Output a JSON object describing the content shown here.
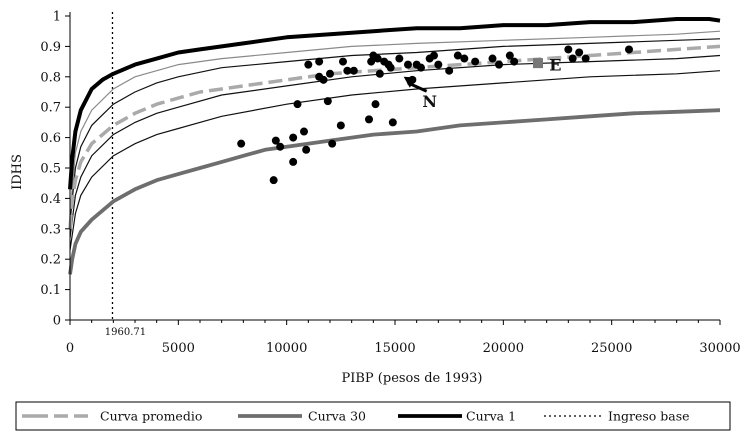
{
  "chart_data": {
    "type": "line",
    "title": "",
    "xlabel": "PIBP (pesos de 1993)",
    "ylabel": "IDHS",
    "xlim": [
      0,
      30000
    ],
    "ylim": [
      0,
      1
    ],
    "x_ticks": [
      "0",
      "5000",
      "10000",
      "15000",
      "20000",
      "25000",
      "30000"
    ],
    "y_ticks": [
      "0",
      "0.1",
      "0.2",
      "0.3",
      "0.4",
      "0.5",
      "0.6",
      "0.7",
      "0.8",
      "0.9",
      "1"
    ],
    "grid": false,
    "legend_position": "bottom",
    "reference_line": {
      "x": 1960.71,
      "label": "1960.71",
      "style": "dotted"
    },
    "series": [
      {
        "name": "Curva 1",
        "style": "solid-thick",
        "color": "#000000",
        "x": [
          0,
          100,
          250,
          500,
          1000,
          1500,
          2000,
          3000,
          4000,
          5000,
          6000,
          7000,
          8000,
          9000,
          10000,
          12000,
          14000,
          16000,
          18000,
          20000,
          22000,
          24000,
          26000,
          28000,
          29500,
          30000
        ],
        "y": [
          0.43,
          0.53,
          0.62,
          0.69,
          0.76,
          0.79,
          0.81,
          0.84,
          0.86,
          0.88,
          0.89,
          0.9,
          0.91,
          0.92,
          0.93,
          0.94,
          0.95,
          0.96,
          0.96,
          0.97,
          0.97,
          0.98,
          0.98,
          0.99,
          0.99,
          0.985
        ]
      },
      {
        "name": "Curva promedio",
        "style": "dashed-thick",
        "color": "#aaaaaa",
        "x": [
          0,
          100,
          250,
          500,
          1000,
          1500,
          2000,
          3000,
          4000,
          5000,
          6000,
          7000,
          8000,
          9000,
          10000,
          12000,
          14000,
          16000,
          18000,
          20000,
          22000,
          24000,
          26000,
          28000,
          30000
        ],
        "y": [
          0.3,
          0.39,
          0.46,
          0.52,
          0.58,
          0.61,
          0.64,
          0.68,
          0.71,
          0.73,
          0.75,
          0.76,
          0.77,
          0.78,
          0.79,
          0.81,
          0.82,
          0.83,
          0.84,
          0.85,
          0.86,
          0.87,
          0.88,
          0.89,
          0.9
        ]
      },
      {
        "name": "Curva 30",
        "style": "solid-thick",
        "color": "#6e6e6e",
        "x": [
          0,
          100,
          250,
          500,
          1000,
          1500,
          2000,
          3000,
          4000,
          5000,
          6000,
          7000,
          8000,
          9000,
          10000,
          12000,
          14000,
          16000,
          18000,
          20000,
          22000,
          24000,
          26000,
          28000,
          30000
        ],
        "y": [
          0.15,
          0.2,
          0.25,
          0.29,
          0.33,
          0.36,
          0.39,
          0.43,
          0.46,
          0.48,
          0.5,
          0.52,
          0.54,
          0.56,
          0.57,
          0.59,
          0.61,
          0.62,
          0.64,
          0.65,
          0.66,
          0.67,
          0.68,
          0.685,
          0.69
        ]
      }
    ],
    "intermediate_curves": [
      {
        "color": "#8a8a8a",
        "x": [
          0,
          250,
          500,
          1000,
          2000,
          3000,
          4000,
          5000,
          7000,
          10000,
          13000,
          16000,
          20000,
          24000,
          28000,
          30000
        ],
        "y": [
          0.35,
          0.55,
          0.62,
          0.69,
          0.76,
          0.8,
          0.82,
          0.84,
          0.86,
          0.88,
          0.9,
          0.91,
          0.92,
          0.93,
          0.94,
          0.95
        ]
      },
      {
        "color": "#111111",
        "x": [
          0,
          250,
          500,
          1000,
          2000,
          3000,
          4000,
          5000,
          7000,
          10000,
          13000,
          16000,
          20000,
          24000,
          28000,
          30000
        ],
        "y": [
          0.32,
          0.5,
          0.57,
          0.64,
          0.71,
          0.75,
          0.78,
          0.8,
          0.83,
          0.85,
          0.87,
          0.88,
          0.9,
          0.91,
          0.92,
          0.925
        ]
      },
      {
        "color": "#111111",
        "x": [
          0,
          250,
          500,
          1000,
          2000,
          3000,
          4000,
          5000,
          7000,
          10000,
          13000,
          16000,
          20000,
          24000,
          28000,
          30000
        ],
        "y": [
          0.27,
          0.41,
          0.47,
          0.54,
          0.61,
          0.65,
          0.68,
          0.7,
          0.74,
          0.77,
          0.8,
          0.82,
          0.84,
          0.85,
          0.86,
          0.87
        ]
      },
      {
        "color": "#111111",
        "x": [
          0,
          250,
          500,
          1000,
          2000,
          3000,
          4000,
          5000,
          7000,
          10000,
          13000,
          16000,
          20000,
          24000,
          28000,
          30000
        ],
        "y": [
          0.23,
          0.35,
          0.41,
          0.47,
          0.54,
          0.58,
          0.61,
          0.63,
          0.67,
          0.71,
          0.74,
          0.76,
          0.78,
          0.8,
          0.81,
          0.82
        ]
      }
    ],
    "scatter": {
      "color": "#000000",
      "points": [
        [
          7900,
          0.58
        ],
        [
          9400,
          0.46
        ],
        [
          9500,
          0.59
        ],
        [
          9700,
          0.57
        ],
        [
          10300,
          0.52
        ],
        [
          10300,
          0.6
        ],
        [
          10500,
          0.71
        ],
        [
          10800,
          0.62
        ],
        [
          10900,
          0.56
        ],
        [
          11000,
          0.84
        ],
        [
          11500,
          0.85
        ],
        [
          11500,
          0.8
        ],
        [
          11700,
          0.79
        ],
        [
          11900,
          0.72
        ],
        [
          12000,
          0.81
        ],
        [
          12100,
          0.58
        ],
        [
          12500,
          0.64
        ],
        [
          12600,
          0.85
        ],
        [
          12800,
          0.82
        ],
        [
          13100,
          0.82
        ],
        [
          13800,
          0.66
        ],
        [
          13900,
          0.85
        ],
        [
          14000,
          0.87
        ],
        [
          14100,
          0.71
        ],
        [
          14200,
          0.86
        ],
        [
          14300,
          0.81
        ],
        [
          14500,
          0.85
        ],
        [
          14700,
          0.84
        ],
        [
          14800,
          0.83
        ],
        [
          14900,
          0.65
        ],
        [
          15200,
          0.86
        ],
        [
          15600,
          0.84
        ],
        [
          15800,
          0.79
        ],
        [
          16000,
          0.84
        ],
        [
          16200,
          0.83
        ],
        [
          16600,
          0.86
        ],
        [
          16800,
          0.87
        ],
        [
          17000,
          0.84
        ],
        [
          17500,
          0.82
        ],
        [
          17900,
          0.87
        ],
        [
          18200,
          0.86
        ],
        [
          18700,
          0.85
        ],
        [
          19500,
          0.86
        ],
        [
          19800,
          0.84
        ],
        [
          20300,
          0.87
        ],
        [
          20500,
          0.85
        ],
        [
          23000,
          0.89
        ],
        [
          23200,
          0.86
        ],
        [
          23500,
          0.88
        ],
        [
          23800,
          0.86
        ],
        [
          25800,
          0.89
        ]
      ]
    },
    "highlight_point": {
      "x": 21600,
      "y": 0.845,
      "color": "#777777"
    },
    "annotations": [
      {
        "text": "N",
        "x": 16600,
        "y": 0.7,
        "arrow_to": [
          15400,
          0.8
        ]
      },
      {
        "text": "E",
        "x": 22400,
        "y": 0.82
      }
    ],
    "legend": [
      {
        "label": "Curva promedio",
        "style": "dashed-thick",
        "color": "#aaaaaa"
      },
      {
        "label": "Curva 30",
        "style": "solid-thick",
        "color": "#6e6e6e"
      },
      {
        "label": "Curva 1",
        "style": "solid-thick",
        "color": "#000000"
      },
      {
        "label": "Ingreso base",
        "style": "dotted",
        "color": "#000000"
      }
    ]
  }
}
